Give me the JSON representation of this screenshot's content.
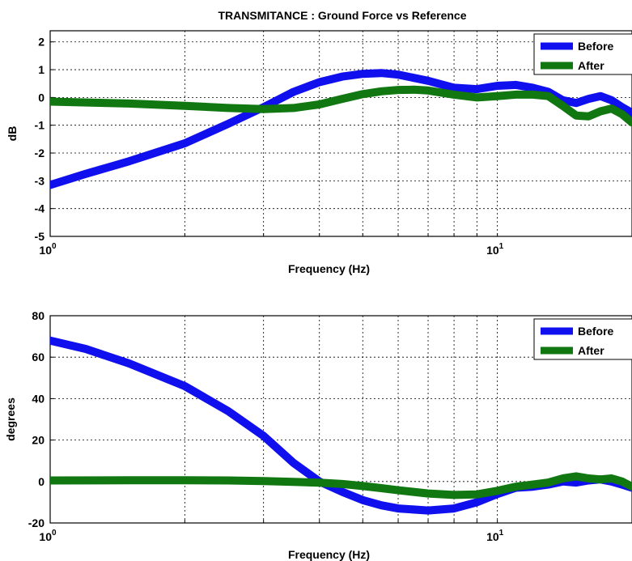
{
  "figure_title": "TRANSMITANCE : Ground Force vs Reference",
  "chart_data": [
    {
      "type": "line",
      "title": "TRANSMITANCE : Ground Force vs Reference",
      "xlabel": "Frequency (Hz)",
      "ylabel": "dB",
      "xscale": "log",
      "xlim": [
        1,
        20
      ],
      "ylim": [
        -5,
        2.4
      ],
      "yticks": [
        "2",
        "1",
        "0",
        "-1",
        "-2",
        "-3",
        "-4",
        "-5"
      ],
      "xticks": [
        {
          "base": "10",
          "exp": "0",
          "value": 1
        },
        {
          "base": "10",
          "exp": "1",
          "value": 10
        }
      ],
      "grid": true,
      "legend": "top-right",
      "series": [
        {
          "name": "Before",
          "color": "#1010ee",
          "x": [
            1,
            1.2,
            1.5,
            2,
            2.5,
            3,
            3.5,
            4,
            4.5,
            5,
            5.5,
            6,
            7,
            8,
            9,
            10,
            11,
            12,
            13,
            14,
            15,
            16,
            17,
            18,
            19,
            20
          ],
          "y": [
            -3.15,
            -2.75,
            -2.3,
            -1.65,
            -0.95,
            -0.35,
            0.2,
            0.55,
            0.75,
            0.85,
            0.88,
            0.82,
            0.6,
            0.35,
            0.3,
            0.42,
            0.45,
            0.35,
            0.2,
            -0.1,
            -0.2,
            -0.05,
            0.05,
            -0.1,
            -0.35,
            -0.55
          ]
        },
        {
          "name": "After",
          "color": "#117711",
          "x": [
            1,
            1.5,
            2,
            2.5,
            3,
            3.5,
            4,
            4.5,
            5,
            5.5,
            6,
            6.5,
            7,
            8,
            9,
            10,
            11,
            12,
            13,
            14,
            15,
            16,
            17,
            18,
            19,
            20
          ],
          "y": [
            -0.15,
            -0.22,
            -0.3,
            -0.38,
            -0.42,
            -0.38,
            -0.25,
            -0.05,
            0.12,
            0.22,
            0.27,
            0.28,
            0.25,
            0.1,
            0.0,
            0.05,
            0.1,
            0.1,
            0.05,
            -0.3,
            -0.65,
            -0.68,
            -0.5,
            -0.4,
            -0.6,
            -0.9
          ]
        }
      ]
    },
    {
      "type": "line",
      "title": "",
      "xlabel": "Frequency (Hz)",
      "ylabel": "degrees",
      "xscale": "log",
      "xlim": [
        1,
        20
      ],
      "ylim": [
        -20,
        80
      ],
      "yticks": [
        "80",
        "60",
        "40",
        "20",
        "0",
        "-20"
      ],
      "xticks": [
        {
          "base": "10",
          "exp": "0",
          "value": 1
        },
        {
          "base": "10",
          "exp": "1",
          "value": 10
        }
      ],
      "grid": true,
      "legend": "top-right",
      "series": [
        {
          "name": "Before",
          "color": "#1010ee",
          "x": [
            1,
            1.2,
            1.5,
            2,
            2.5,
            3,
            3.5,
            4,
            4.5,
            5,
            5.5,
            6,
            7,
            8,
            9,
            10,
            11,
            12,
            13,
            14,
            15,
            16,
            17,
            18,
            19,
            20
          ],
          "y": [
            68,
            64,
            57,
            46,
            34,
            22,
            9,
            0,
            -5,
            -9,
            -11.5,
            -13,
            -14,
            -13,
            -10,
            -6,
            -3,
            -2.5,
            -1.5,
            0,
            -0.5,
            0.5,
            1,
            0,
            -1.5,
            -3
          ]
        },
        {
          "name": "After",
          "color": "#117711",
          "x": [
            1,
            1.5,
            2,
            2.5,
            3,
            3.5,
            4,
            4.5,
            5,
            5.5,
            6,
            7,
            8,
            9,
            10,
            11,
            12,
            13,
            14,
            15,
            16,
            17,
            18,
            19,
            20
          ],
          "y": [
            0.5,
            0.6,
            0.6,
            0.5,
            0.2,
            -0.2,
            -0.6,
            -1.2,
            -2.2,
            -3.2,
            -4.2,
            -5.8,
            -6.5,
            -6.2,
            -4.5,
            -2.5,
            -1.5,
            -0.5,
            1.5,
            2.5,
            1.5,
            1,
            1.5,
            0,
            -2.5
          ]
        }
      ]
    }
  ]
}
